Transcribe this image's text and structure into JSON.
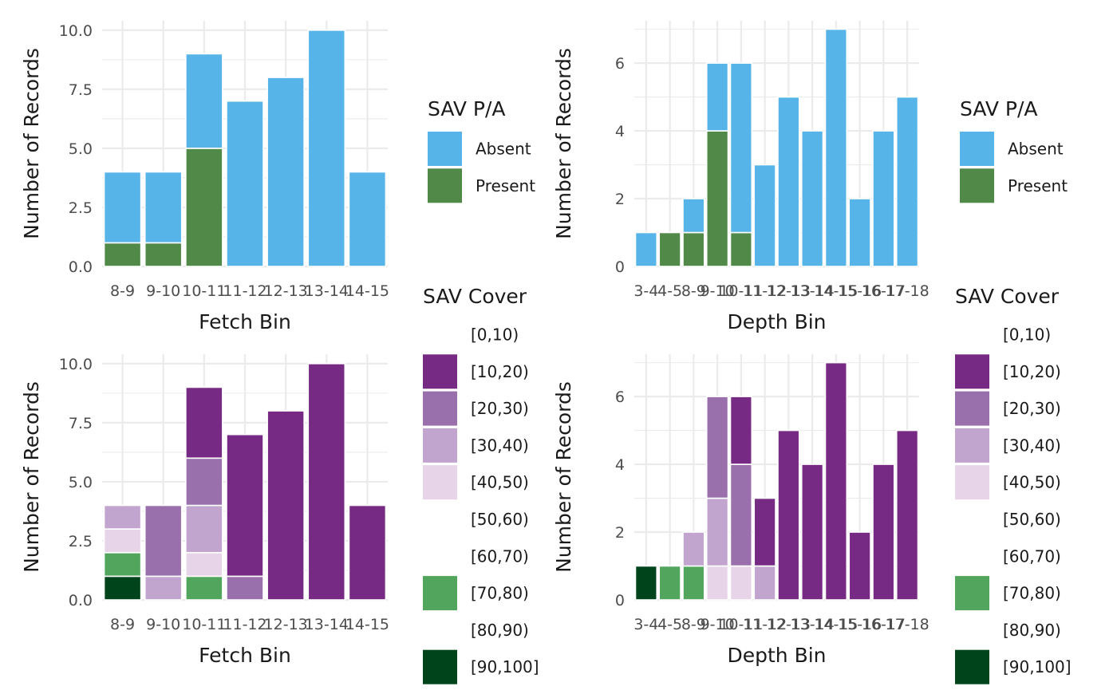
{
  "chart_data": [
    {
      "type": "bar",
      "stacked": true,
      "categories": [
        "8-9",
        "9-10",
        "10-11",
        "11-12",
        "12-13",
        "13-14",
        "14-15"
      ],
      "series": [
        {
          "name": "Absent",
          "color": "#56B4E9",
          "values": [
            3,
            3,
            4,
            7,
            8,
            10,
            4
          ]
        },
        {
          "name": "Present",
          "color": "#518948",
          "values": [
            1,
            1,
            5,
            0,
            0,
            0,
            0
          ]
        }
      ],
      "xlabel": "Fetch Bin",
      "ylabel": "Number of Records",
      "yticks": [
        "0.0",
        "2.5",
        "5.0",
        "7.5",
        "10.0"
      ],
      "ylim": [
        0,
        10.4
      ],
      "legend": {
        "title": "SAV P/A",
        "entries": [
          "Absent",
          "Present"
        ]
      },
      "grid": true
    },
    {
      "type": "bar",
      "stacked": true,
      "categories": [
        "3-4",
        "4-5",
        "8-9",
        "9-10",
        "10-11",
        "11-12",
        "12-13",
        "13-14",
        "14-15",
        "15-16",
        "16-17",
        "17-18"
      ],
      "series": [
        {
          "name": "Absent",
          "color": "#56B4E9",
          "values": [
            1,
            0,
            1,
            2,
            5,
            3,
            5,
            4,
            7,
            2,
            4,
            5
          ]
        },
        {
          "name": "Present",
          "color": "#518948",
          "values": [
            0,
            1,
            1,
            4,
            1,
            0,
            0,
            0,
            0,
            0,
            0,
            0
          ]
        }
      ],
      "xlabel": "Depth Bin",
      "ylabel": "Number of Records",
      "yticks": [
        "0",
        "2",
        "4",
        "6"
      ],
      "ylim": [
        0,
        7.25
      ],
      "legend": {
        "title": "SAV P/A",
        "entries": [
          "Absent",
          "Present"
        ]
      },
      "grid": true
    },
    {
      "type": "bar",
      "stacked": true,
      "categories": [
        "8-9",
        "9-10",
        "10-11",
        "11-12",
        "12-13",
        "13-14",
        "14-15"
      ],
      "series": [
        {
          "name": "[0,10)",
          "color": null,
          "values": [
            0,
            0,
            0,
            0,
            0,
            0,
            0
          ]
        },
        {
          "name": "[10,20)",
          "color": "#762A83",
          "values": [
            0,
            0,
            3,
            6,
            8,
            10,
            4
          ]
        },
        {
          "name": "[20,30)",
          "color": "#9970AB",
          "values": [
            0,
            3,
            2,
            1,
            0,
            0,
            0
          ]
        },
        {
          "name": "[30,40)",
          "color": "#C2A5CF",
          "values": [
            1,
            1,
            2,
            0,
            0,
            0,
            0
          ]
        },
        {
          "name": "[40,50)",
          "color": "#E7D4E8",
          "values": [
            1,
            0,
            1,
            0,
            0,
            0,
            0
          ]
        },
        {
          "name": "[50,60)",
          "color": null,
          "values": [
            0,
            0,
            0,
            0,
            0,
            0,
            0
          ]
        },
        {
          "name": "[60,70)",
          "color": null,
          "values": [
            0,
            0,
            0,
            0,
            0,
            0,
            0
          ]
        },
        {
          "name": "[70,80)",
          "color": "#52A55C",
          "values": [
            1,
            0,
            1,
            0,
            0,
            0,
            0
          ]
        },
        {
          "name": "[80,90)",
          "color": null,
          "values": [
            0,
            0,
            0,
            0,
            0,
            0,
            0
          ]
        },
        {
          "name": "[90,100]",
          "color": "#00441B",
          "values": [
            1,
            0,
            0,
            0,
            0,
            0,
            0
          ]
        }
      ],
      "xlabel": "Fetch Bin",
      "ylabel": "Number of Records",
      "yticks": [
        "0.0",
        "2.5",
        "5.0",
        "7.5",
        "10.0"
      ],
      "ylim": [
        0,
        10.4
      ],
      "legend": {
        "title": "SAV Cover",
        "entries": [
          "[0,10)",
          "[10,20)",
          "[20,30)",
          "[30,40)",
          "[40,50)",
          "[50,60)",
          "[60,70)",
          "[70,80)",
          "[80,90)",
          "[90,100]"
        ]
      },
      "grid": true
    },
    {
      "type": "bar",
      "stacked": true,
      "categories": [
        "3-4",
        "4-5",
        "8-9",
        "9-10",
        "10-11",
        "11-12",
        "12-13",
        "13-14",
        "14-15",
        "15-16",
        "16-17",
        "17-18"
      ],
      "series": [
        {
          "name": "[0,10)",
          "color": null,
          "values": [
            0,
            0,
            0,
            0,
            0,
            0,
            0,
            0,
            0,
            0,
            0,
            0
          ]
        },
        {
          "name": "[10,20)",
          "color": "#762A83",
          "values": [
            0,
            0,
            0,
            0,
            2,
            2,
            5,
            4,
            7,
            2,
            4,
            5
          ]
        },
        {
          "name": "[20,30)",
          "color": "#9970AB",
          "values": [
            0,
            0,
            0,
            3,
            3,
            0,
            0,
            0,
            0,
            0,
            0,
            0
          ]
        },
        {
          "name": "[30,40)",
          "color": "#C2A5CF",
          "values": [
            0,
            0,
            1,
            2,
            0,
            1,
            0,
            0,
            0,
            0,
            0,
            0
          ]
        },
        {
          "name": "[40,50)",
          "color": "#E7D4E8",
          "values": [
            0,
            0,
            0,
            1,
            1,
            0,
            0,
            0,
            0,
            0,
            0,
            0
          ]
        },
        {
          "name": "[50,60)",
          "color": null,
          "values": [
            0,
            0,
            0,
            0,
            0,
            0,
            0,
            0,
            0,
            0,
            0,
            0
          ]
        },
        {
          "name": "[60,70)",
          "color": null,
          "values": [
            0,
            0,
            0,
            0,
            0,
            0,
            0,
            0,
            0,
            0,
            0,
            0
          ]
        },
        {
          "name": "[70,80)",
          "color": "#52A55C",
          "values": [
            0,
            1,
            1,
            0,
            0,
            0,
            0,
            0,
            0,
            0,
            0,
            0
          ]
        },
        {
          "name": "[80,90)",
          "color": null,
          "values": [
            0,
            0,
            0,
            0,
            0,
            0,
            0,
            0,
            0,
            0,
            0,
            0
          ]
        },
        {
          "name": "[90,100]",
          "color": "#00441B",
          "values": [
            1,
            0,
            0,
            0,
            0,
            0,
            0,
            0,
            0,
            0,
            0,
            0
          ]
        }
      ],
      "xlabel": "Depth Bin",
      "ylabel": "Number of Records",
      "yticks": [
        "0",
        "2",
        "4",
        "6"
      ],
      "ylim": [
        0,
        7.25
      ],
      "legend": {
        "title": "SAV Cover",
        "entries": [
          "[0,10)",
          "[10,20)",
          "[20,30)",
          "[30,40)",
          "[40,50)",
          "[50,60)",
          "[60,70)",
          "[70,80)",
          "[80,90)",
          "[90,100]"
        ]
      },
      "grid": true
    }
  ]
}
